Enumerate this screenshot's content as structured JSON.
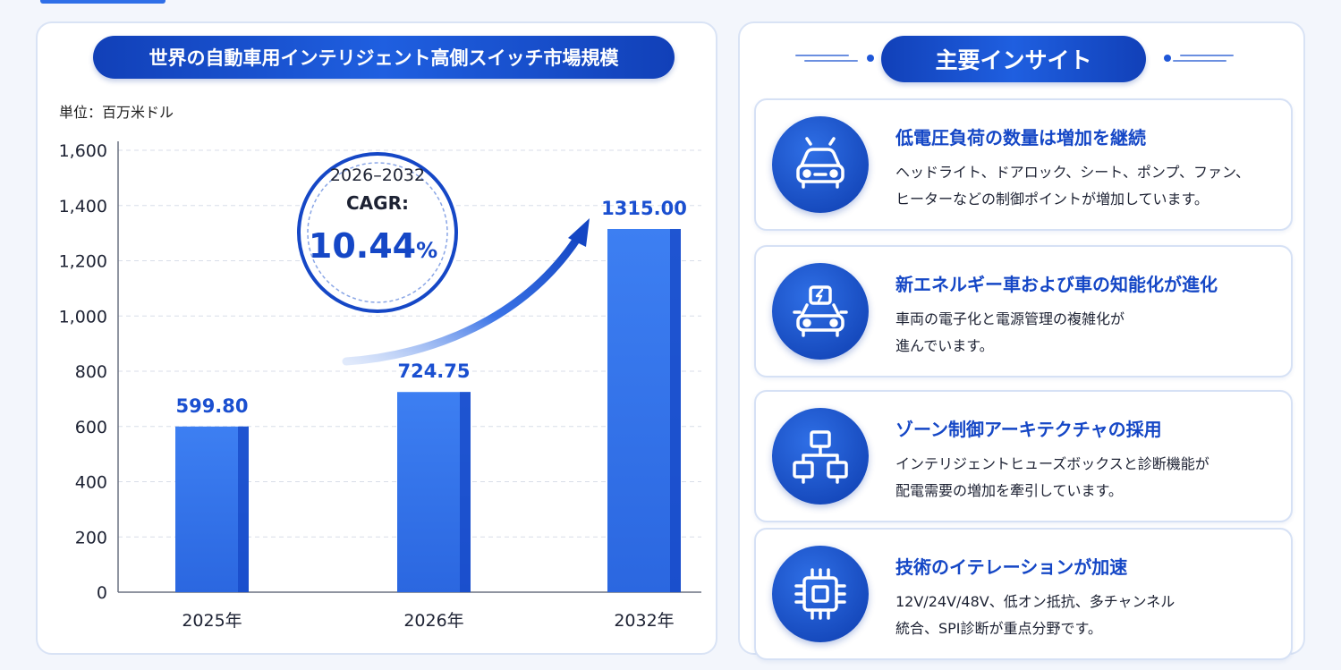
{
  "chart_data": {
    "type": "bar",
    "title": "世界の自動車用インテリジェント高側スイッチ市場規模",
    "unit": "単位：百万米ドル",
    "categories": [
      "2025年",
      "2026年",
      "2032年"
    ],
    "values": [
      599.8,
      724.75,
      1315.0
    ],
    "value_labels": [
      "599.80",
      "724.75",
      "1315.00"
    ],
    "ylim": [
      0,
      1600
    ],
    "yticks": [
      0,
      200,
      400,
      600,
      800,
      1000,
      1200,
      1400,
      1600
    ],
    "ytick_labels": [
      "0",
      "200",
      "400",
      "600",
      "800",
      "1,000",
      "1,200",
      "1,400",
      "1,600"
    ],
    "grid": true,
    "cagr": {
      "period": "2026–2032",
      "label": "CAGR:",
      "value": "10.44",
      "unit": "%"
    },
    "colors": {
      "bar": "#3a7bf0",
      "bar_dark": "#1547c6",
      "accent": "#1547c6"
    }
  },
  "insights": {
    "title": "主要インサイト",
    "items": [
      {
        "icon": "car-icon",
        "title": "低電圧負荷の数量は増加を継続",
        "desc_lines": [
          "ヘッドライト、ドアロック、シート、ポンプ、ファン、",
          "ヒーターなどの制御ポイントが増加しています。"
        ]
      },
      {
        "icon": "electric-car-icon",
        "title": "新エネルギー車および車の知能化が進化",
        "desc_lines": [
          "車両の電子化と電源管理の複雑化が",
          "進んでいます。"
        ]
      },
      {
        "icon": "network-icon",
        "title": "ゾーン制御アーキテクチャの採用",
        "desc_lines": [
          "インテリジェントヒューズボックスと診断機能が",
          "配電需要の増加を牽引しています。"
        ]
      },
      {
        "icon": "chip-icon",
        "title": "技術のイテレーションが加速",
        "desc_lines": [
          "12V/24V/48V、低オン抵抗、多チャンネル",
          "統合、SPI診断が重点分野です。"
        ]
      }
    ]
  }
}
